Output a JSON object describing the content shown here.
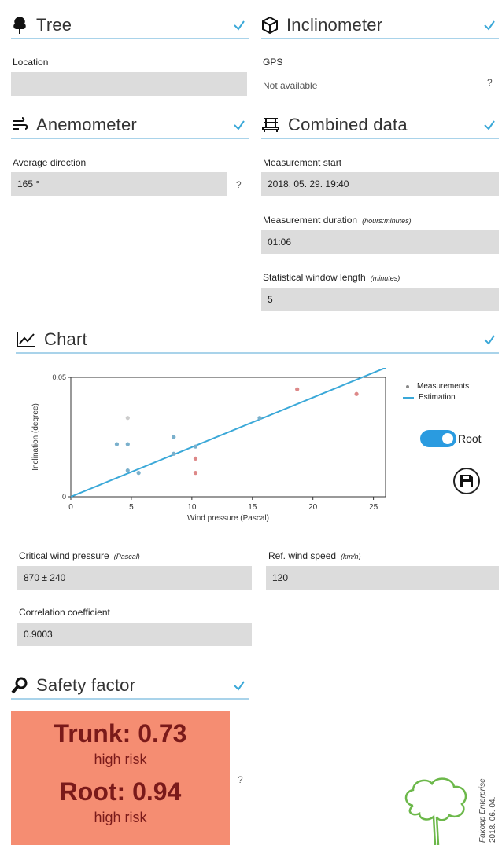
{
  "tree": {
    "title": "Tree",
    "location_label": "Location",
    "location_value": ""
  },
  "inclinometer": {
    "title": "Inclinometer",
    "gps_label": "GPS",
    "gps_value": "Not available",
    "help": "?"
  },
  "anemometer": {
    "title": "Anemometer",
    "avg_dir_label": "Average direction",
    "avg_dir_value": "165 °",
    "help": "?"
  },
  "combined": {
    "title": "Combined data",
    "start_label": "Measurement start",
    "start_value": "2018. 05. 29. 19:40",
    "duration_label": "Measurement duration",
    "duration_unit": "(hours:minutes)",
    "duration_value": "01:06",
    "window_label": "Statistical window length",
    "window_unit": "(minutes)",
    "window_value": "5"
  },
  "chart": {
    "title": "Chart",
    "root_toggle_label": "Root",
    "legend": {
      "measurements": "Measurements",
      "estimation": "Estimation"
    }
  },
  "chart_data": {
    "type": "scatter",
    "xlabel": "Wind pressure (Pascal)",
    "ylabel": "Inclination (degree)",
    "xlim": [
      0,
      26
    ],
    "ylim": [
      0,
      0.05
    ],
    "x_ticks": [
      "0",
      "5",
      "10",
      "15",
      "20",
      "25"
    ],
    "y_ticks": [
      "0",
      "0,05"
    ],
    "series": [
      {
        "name": "Measurements",
        "type": "scatter",
        "x": [
          3.8,
          4.7,
          4.7,
          4.7,
          5.6,
          8.5,
          8.5,
          10.3,
          10.3,
          10.3,
          15.6,
          18.7,
          23.6
        ],
        "y": [
          0.022,
          0.033,
          0.022,
          0.011,
          0.01,
          0.025,
          0.018,
          0.021,
          0.016,
          0.01,
          0.033,
          0.045,
          0.043
        ],
        "colors": [
          "#7ab0cc",
          "#cccccc",
          "#7ab0cc",
          "#7ab0cc",
          "#7ab0cc",
          "#7ab0cc",
          "#7ab0cc",
          "#7ab0cc",
          "#d88",
          "#d88",
          "#7ab0cc",
          "#d88",
          "#d88"
        ]
      },
      {
        "name": "Estimation",
        "type": "line",
        "x": [
          0,
          26
        ],
        "y": [
          0,
          0.054
        ]
      }
    ]
  },
  "critical": {
    "label": "Critical wind pressure",
    "unit": "(Pascal)",
    "value": "870 ± 240",
    "ref_label": "Ref. wind speed",
    "ref_unit": "(km/h)",
    "ref_value": "120",
    "corr_label": "Correlation coefficient",
    "corr_value": "0.9003"
  },
  "safety": {
    "title": "Safety factor",
    "trunk": "Trunk: 0.73",
    "trunk_risk": "high risk",
    "root": "Root: 0.94",
    "root_risk": "high risk",
    "help": "?"
  },
  "footer": {
    "brand": "Fakopp Enterprise",
    "date": "2018. 06. 04."
  },
  "colors": {
    "accent": "#a9d3ea",
    "line": "#3aa8d8",
    "toggle": "#2a9be0",
    "risk": "#f58d72"
  }
}
